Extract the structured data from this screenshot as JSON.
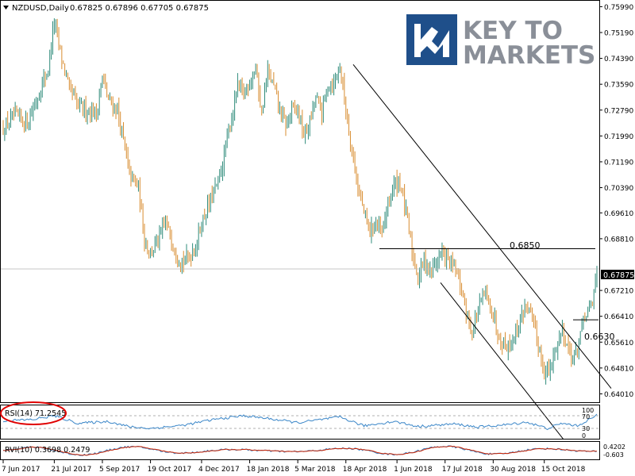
{
  "header": {
    "symbol_timeframe": "NZDUSD,Daily",
    "ohlc": "0.67825 0.67896 0.67705 0.67875"
  },
  "logo": {
    "line1": "KEY TO",
    "line2": "MARKETS",
    "mark": "KM"
  },
  "colors": {
    "bull": "#2e8b7a",
    "bear": "#d88c2f",
    "logo_blue": "#1f4f8a",
    "logo_gray": "#8a8f98",
    "rsi_line": "#3a86c8",
    "rvi_main": "#3a86c8",
    "rvi_signal": "#cc2200",
    "highlight_ellipse": "#e00000"
  },
  "chart_data": {
    "type": "candlestick",
    "symbol": "NZDUSD",
    "timeframe": "Daily",
    "last_price": 0.67875,
    "last_price_label": "0.67875",
    "ylim": [
      0.638,
      0.76
    ],
    "y_ticks": [
      "0.75990",
      "0.75190",
      "0.74390",
      "0.73590",
      "0.72790",
      "0.71990",
      "0.71190",
      "0.70390",
      "0.69610",
      "0.68810",
      "0.67210",
      "0.66410",
      "0.65610",
      "0.64810",
      "0.64010"
    ],
    "x_ticks": [
      "7 Jun 2017",
      "21 Jul 2017",
      "5 Sep 2017",
      "19 Oct 2017",
      "4 Dec 2017",
      "18 Jan 2018",
      "5 Mar 2018",
      "18 Apr 2018",
      "1 Jun 2018",
      "17 Jul 2018",
      "30 Aug 2018",
      "15 Oct 2018"
    ],
    "anchors": [
      [
        0,
        0.722
      ],
      [
        8,
        0.726
      ],
      [
        16,
        0.724
      ],
      [
        24,
        0.733
      ],
      [
        30,
        0.741
      ],
      [
        34,
        0.755
      ],
      [
        38,
        0.746
      ],
      [
        44,
        0.734
      ],
      [
        50,
        0.729
      ],
      [
        56,
        0.728
      ],
      [
        62,
        0.727
      ],
      [
        66,
        0.738
      ],
      [
        70,
        0.731
      ],
      [
        76,
        0.728
      ],
      [
        80,
        0.718
      ],
      [
        84,
        0.708
      ],
      [
        90,
        0.704
      ],
      [
        94,
        0.688
      ],
      [
        98,
        0.684
      ],
      [
        104,
        0.688
      ],
      [
        108,
        0.693
      ],
      [
        112,
        0.688
      ],
      [
        116,
        0.683
      ],
      [
        120,
        0.681
      ],
      [
        124,
        0.683
      ],
      [
        128,
        0.686
      ],
      [
        132,
        0.693
      ],
      [
        136,
        0.698
      ],
      [
        140,
        0.702
      ],
      [
        144,
        0.707
      ],
      [
        148,
        0.716
      ],
      [
        152,
        0.726
      ],
      [
        156,
        0.735
      ],
      [
        160,
        0.733
      ],
      [
        164,
        0.737
      ],
      [
        168,
        0.741
      ],
      [
        172,
        0.727
      ],
      [
        176,
        0.74
      ],
      [
        180,
        0.735
      ],
      [
        184,
        0.728
      ],
      [
        188,
        0.723
      ],
      [
        192,
        0.728
      ],
      [
        196,
        0.728
      ],
      [
        200,
        0.72
      ],
      [
        204,
        0.724
      ],
      [
        208,
        0.732
      ],
      [
        212,
        0.727
      ],
      [
        216,
        0.736
      ],
      [
        220,
        0.736
      ],
      [
        224,
        0.742
      ],
      [
        228,
        0.728
      ],
      [
        232,
        0.716
      ],
      [
        236,
        0.704
      ],
      [
        240,
        0.696
      ],
      [
        244,
        0.69
      ],
      [
        248,
        0.693
      ],
      [
        252,
        0.689
      ],
      [
        256,
        0.699
      ],
      [
        260,
        0.705
      ],
      [
        264,
        0.706
      ],
      [
        268,
        0.696
      ],
      [
        272,
        0.684
      ],
      [
        276,
        0.676
      ],
      [
        280,
        0.682
      ],
      [
        284,
        0.678
      ],
      [
        288,
        0.681
      ],
      [
        292,
        0.684
      ],
      [
        296,
        0.681
      ],
      [
        300,
        0.679
      ],
      [
        304,
        0.674
      ],
      [
        308,
        0.666
      ],
      [
        312,
        0.659
      ],
      [
        316,
        0.666
      ],
      [
        320,
        0.671
      ],
      [
        324,
        0.668
      ],
      [
        328,
        0.661
      ],
      [
        332,
        0.656
      ],
      [
        336,
        0.655
      ],
      [
        340,
        0.658
      ],
      [
        344,
        0.663
      ],
      [
        348,
        0.668
      ],
      [
        352,
        0.663
      ],
      [
        356,
        0.655
      ],
      [
        360,
        0.647
      ],
      [
        364,
        0.647
      ],
      [
        368,
        0.655
      ],
      [
        372,
        0.66
      ],
      [
        376,
        0.654
      ],
      [
        380,
        0.651
      ],
      [
        384,
        0.659
      ],
      [
        388,
        0.665
      ],
      [
        392,
        0.668
      ],
      [
        395,
        0.679
      ]
    ],
    "annotations": [
      {
        "label": "0.6850",
        "type": "horizontal",
        "price": 0.685
      },
      {
        "label": "0.6630",
        "type": "horizontal",
        "price": 0.663
      }
    ],
    "trendlines": [
      {
        "from_date": "18 Apr 2018",
        "from_price": 0.742,
        "to_price": 0.6418,
        "note": "descending resistance"
      },
      {
        "from_date": "1 Jun 2018",
        "from_price": 0.6745,
        "to_price": 0.626,
        "note": "descending support"
      }
    ],
    "rsi": {
      "label": "RSI(14) 71.2545",
      "value": 71.2545,
      "levels": [
        "100",
        "70",
        "30",
        "0"
      ],
      "anchors": [
        [
          0,
          54
        ],
        [
          20,
          58
        ],
        [
          34,
          70
        ],
        [
          50,
          46
        ],
        [
          70,
          52
        ],
        [
          84,
          35
        ],
        [
          98,
          30
        ],
        [
          120,
          40
        ],
        [
          140,
          58
        ],
        [
          160,
          70
        ],
        [
          175,
          62
        ],
        [
          196,
          48
        ],
        [
          212,
          58
        ],
        [
          224,
          66
        ],
        [
          240,
          38
        ],
        [
          260,
          52
        ],
        [
          276,
          36
        ],
        [
          300,
          44
        ],
        [
          316,
          34
        ],
        [
          336,
          42
        ],
        [
          348,
          50
        ],
        [
          362,
          30
        ],
        [
          372,
          46
        ],
        [
          382,
          38
        ],
        [
          395,
          71
        ]
      ]
    },
    "rvi": {
      "label": "RVI(10) 0.3698 0.2479",
      "main": 0.3698,
      "signal": 0.2479,
      "levels": [
        "0.4202",
        "-0.603"
      ]
    }
  }
}
